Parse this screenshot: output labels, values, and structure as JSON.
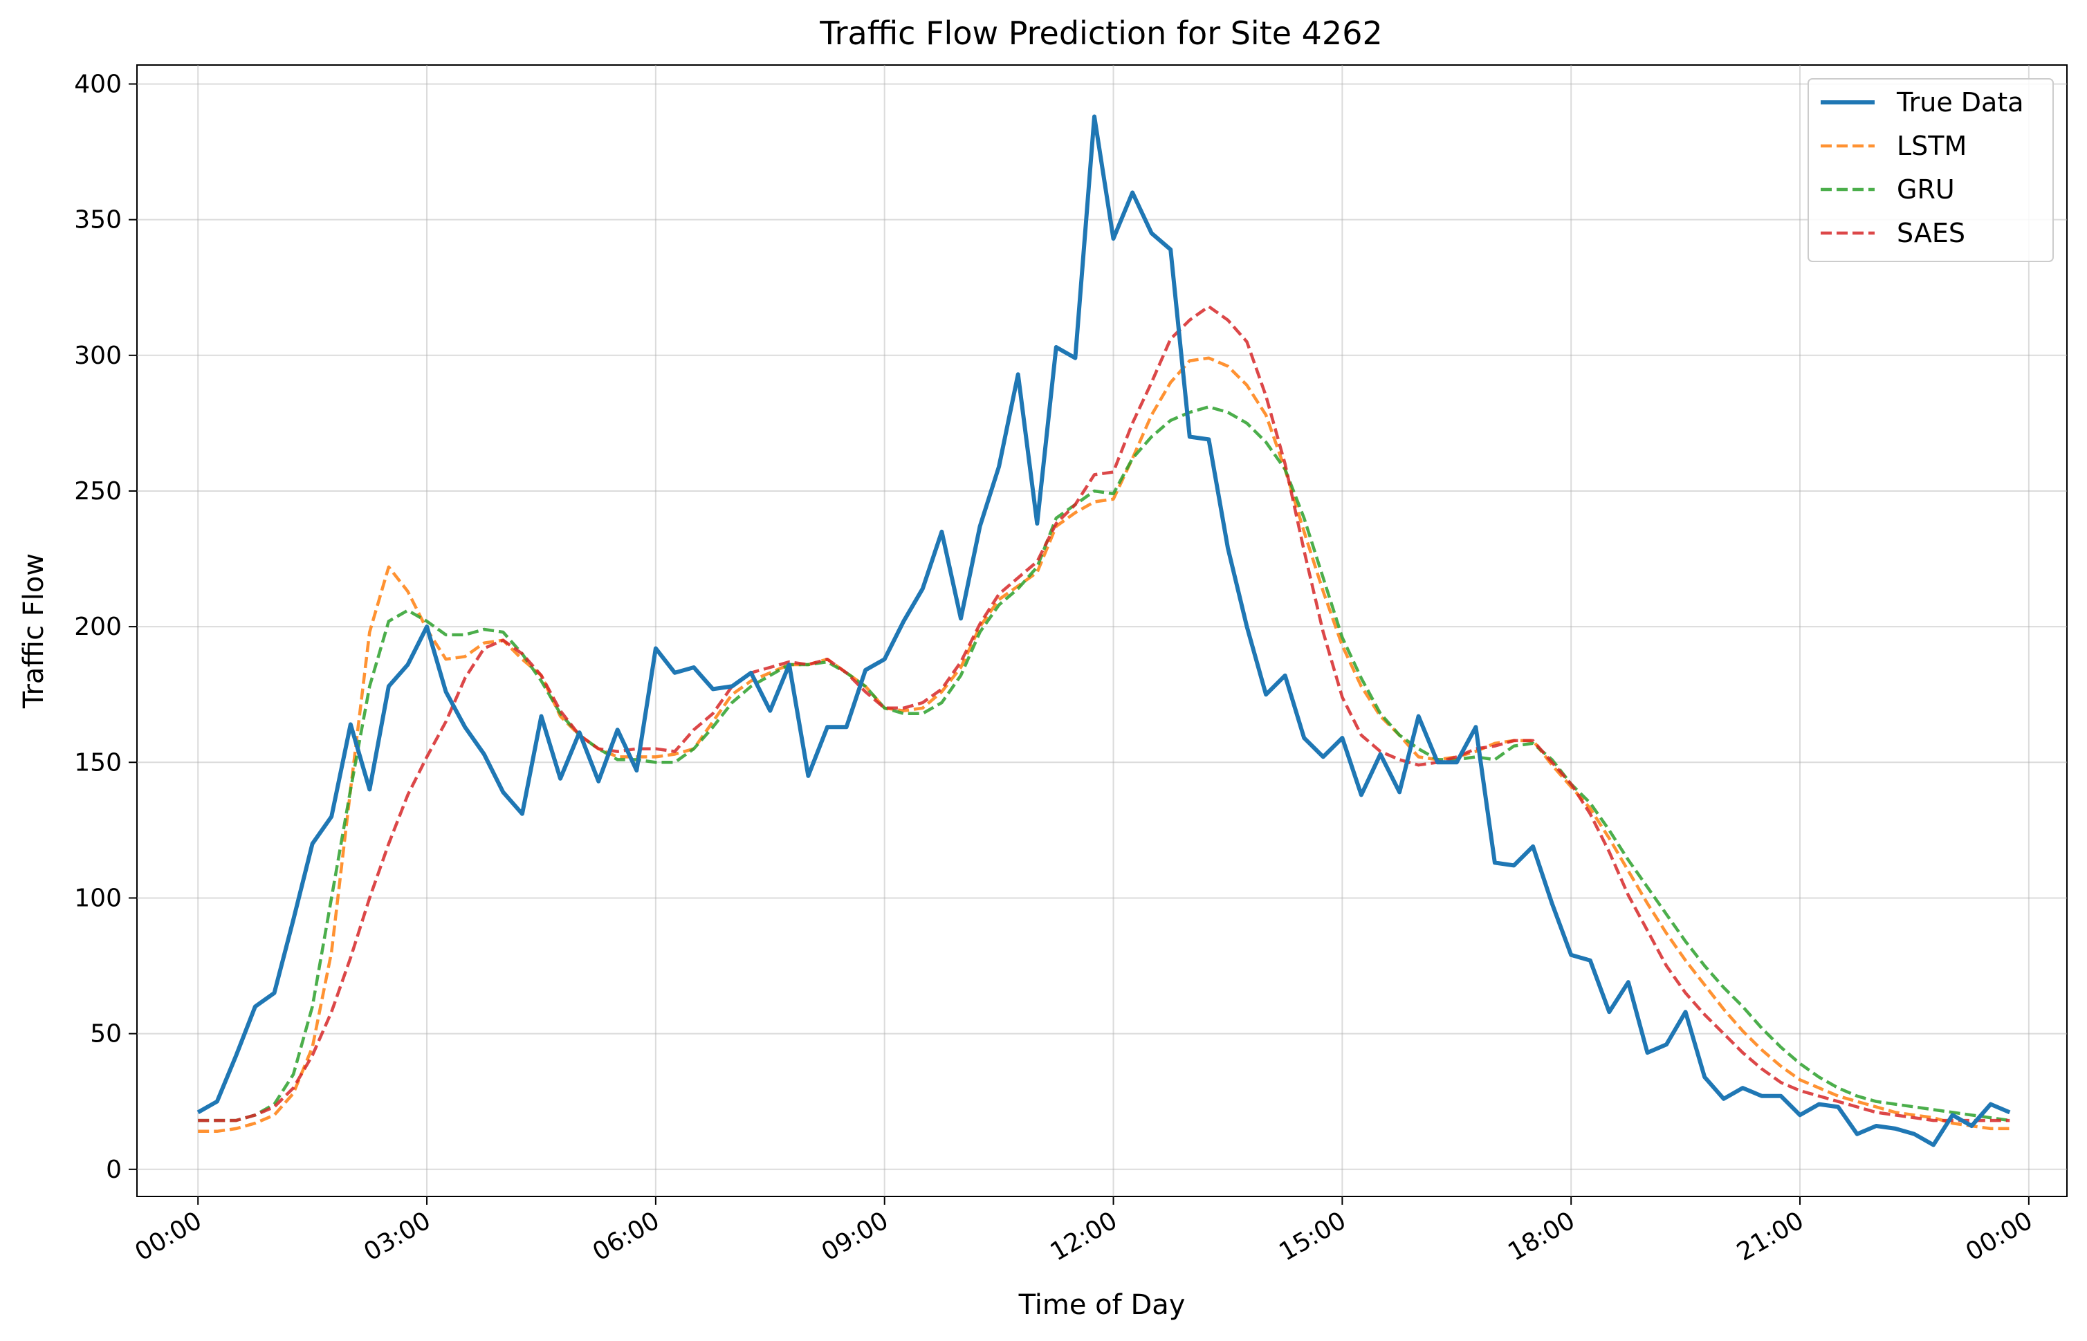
{
  "chart_data": {
    "type": "line",
    "title": "Traffic Flow Prediction for Site 4262",
    "xlabel": "Time of Day",
    "ylabel": "Traffic Flow",
    "x_unit": "hours",
    "xlim": [
      -0.8,
      24.5
    ],
    "ylim": [
      -10,
      407
    ],
    "x_ticks": [
      {
        "value": 0,
        "label": "00:00"
      },
      {
        "value": 3,
        "label": "03:00"
      },
      {
        "value": 6,
        "label": "06:00"
      },
      {
        "value": 9,
        "label": "09:00"
      },
      {
        "value": 12,
        "label": "12:00"
      },
      {
        "value": 15,
        "label": "15:00"
      },
      {
        "value": 18,
        "label": "18:00"
      },
      {
        "value": 21,
        "label": "21:00"
      },
      {
        "value": 24,
        "label": "00:00"
      }
    ],
    "y_ticks": [
      0,
      50,
      100,
      150,
      200,
      250,
      300,
      350,
      400
    ],
    "grid": true,
    "legend_position": "top-right",
    "x_step_hours": 0.25,
    "series": [
      {
        "name": "True Data",
        "color": "#1f77b4",
        "style": "solid",
        "values": [
          21,
          25,
          42,
          60,
          65,
          92,
          120,
          130,
          164,
          140,
          178,
          186,
          200,
          176,
          163,
          153,
          139,
          131,
          167,
          144,
          161,
          143,
          162,
          147,
          192,
          183,
          185,
          177,
          178,
          183,
          169,
          186,
          145,
          163,
          163,
          184,
          188,
          202,
          214,
          235,
          203,
          237,
          259,
          293,
          238,
          303,
          299,
          388,
          343,
          360,
          345,
          339,
          270,
          269,
          229,
          200,
          175,
          182,
          159,
          152,
          159,
          138,
          153,
          139,
          167,
          150,
          150,
          163,
          113,
          112,
          119,
          98,
          79,
          77,
          58,
          69,
          43,
          46,
          58,
          34,
          26,
          30,
          27,
          27,
          20,
          24,
          23,
          13,
          16,
          15,
          13,
          9,
          20,
          16,
          24,
          21
        ]
      },
      {
        "name": "LSTM",
        "color": "#ff7f0e",
        "style": "dashed",
        "values": [
          14,
          14,
          15,
          17,
          20,
          28,
          45,
          80,
          140,
          198,
          222,
          213,
          199,
          188,
          189,
          194,
          195,
          188,
          182,
          167,
          160,
          155,
          152,
          152,
          152,
          153,
          155,
          165,
          175,
          180,
          183,
          186,
          186,
          188,
          183,
          178,
          170,
          169,
          170,
          176,
          185,
          200,
          210,
          215,
          220,
          237,
          242,
          246,
          247,
          262,
          278,
          290,
          298,
          299,
          296,
          289,
          278,
          258,
          235,
          213,
          193,
          178,
          167,
          160,
          152,
          151,
          152,
          154,
          157,
          158,
          158,
          149,
          141,
          133,
          122,
          110,
          98,
          87,
          77,
          68,
          59,
          51,
          44,
          38,
          33,
          30,
          27,
          25,
          23,
          21,
          20,
          19,
          17,
          16,
          15,
          15
        ]
      },
      {
        "name": "GRU",
        "color": "#2ca02c",
        "style": "dashed",
        "values": [
          18,
          18,
          18,
          20,
          24,
          35,
          60,
          100,
          140,
          178,
          202,
          206,
          202,
          197,
          197,
          199,
          198,
          190,
          180,
          168,
          160,
          155,
          151,
          151,
          150,
          150,
          155,
          163,
          172,
          178,
          182,
          186,
          186,
          187,
          183,
          178,
          170,
          168,
          168,
          172,
          182,
          198,
          208,
          214,
          222,
          240,
          245,
          250,
          249,
          262,
          270,
          276,
          279,
          281,
          279,
          275,
          268,
          258,
          240,
          218,
          196,
          181,
          168,
          160,
          155,
          151,
          151,
          152,
          151,
          156,
          157,
          151,
          142,
          135,
          125,
          114,
          104,
          94,
          84,
          75,
          67,
          60,
          52,
          45,
          39,
          34,
          30,
          27,
          25,
          24,
          23,
          22,
          21,
          20,
          19,
          18
        ]
      },
      {
        "name": "SAES",
        "color": "#d62728",
        "style": "dashed",
        "values": [
          18,
          18,
          18,
          20,
          23,
          30,
          42,
          58,
          78,
          100,
          120,
          138,
          152,
          165,
          181,
          192,
          195,
          190,
          182,
          169,
          160,
          155,
          154,
          155,
          155,
          154,
          162,
          168,
          178,
          183,
          185,
          187,
          186,
          188,
          183,
          176,
          170,
          170,
          172,
          177,
          187,
          201,
          212,
          218,
          224,
          238,
          245,
          256,
          257,
          275,
          290,
          306,
          313,
          318,
          313,
          305,
          285,
          260,
          228,
          198,
          174,
          160,
          154,
          151,
          149,
          150,
          152,
          155,
          156,
          158,
          158,
          150,
          142,
          131,
          117,
          101,
          88,
          75,
          65,
          57,
          50,
          43,
          37,
          32,
          29,
          27,
          25,
          23,
          21,
          20,
          19,
          18,
          18,
          18,
          18,
          18
        ]
      }
    ]
  }
}
